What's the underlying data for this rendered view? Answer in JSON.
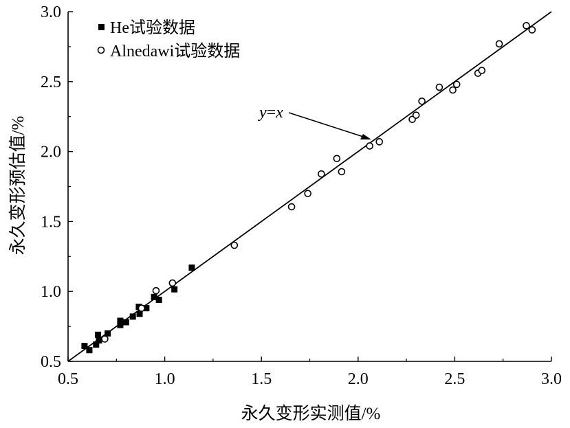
{
  "chart_data": {
    "type": "scatter",
    "title": "",
    "xlabel": "永久变形实测值/%",
    "ylabel": "永久变形预估值/%",
    "xlim": [
      0.5,
      3.0
    ],
    "ylim": [
      0.5,
      3.0
    ],
    "xticks": [
      "0.5",
      "1.0",
      "1.5",
      "2.0",
      "2.5",
      "3.0"
    ],
    "yticks": [
      "0.5",
      "1.0",
      "1.5",
      "2.0",
      "2.5",
      "3.0"
    ],
    "grid": false,
    "legend_position": "top-left",
    "reference_line": {
      "label": "y=x",
      "label_y": "y",
      "label_eq": "=",
      "label_x": "x",
      "from": [
        0.5,
        0.5
      ],
      "to": [
        3.0,
        3.0
      ]
    },
    "series": [
      {
        "name": "He试验数据",
        "marker": "filled-square",
        "x": [
          0.585,
          0.61,
          0.645,
          0.655,
          0.66,
          0.705,
          0.77,
          0.77,
          0.8,
          0.835,
          0.866,
          0.87,
          0.905,
          0.945,
          0.97,
          1.05,
          1.14
        ],
        "y": [
          0.61,
          0.58,
          0.62,
          0.69,
          0.65,
          0.7,
          0.79,
          0.76,
          0.78,
          0.82,
          0.89,
          0.84,
          0.88,
          0.96,
          0.94,
          1.015,
          1.17
        ]
      },
      {
        "name": "Alnedawi试验数据",
        "marker": "open-circle",
        "x": [
          0.69,
          0.88,
          0.955,
          1.04,
          1.36,
          1.656,
          1.74,
          1.81,
          1.89,
          1.915,
          2.06,
          2.11,
          2.28,
          2.3,
          2.33,
          2.42,
          2.49,
          2.51,
          2.62,
          2.64,
          2.73,
          2.87,
          2.9
        ],
        "y": [
          0.66,
          0.88,
          1.005,
          1.06,
          1.33,
          1.605,
          1.7,
          1.84,
          1.95,
          1.856,
          2.04,
          2.07,
          2.23,
          2.26,
          2.36,
          2.46,
          2.44,
          2.48,
          2.56,
          2.58,
          2.77,
          2.9,
          2.87
        ]
      }
    ]
  }
}
